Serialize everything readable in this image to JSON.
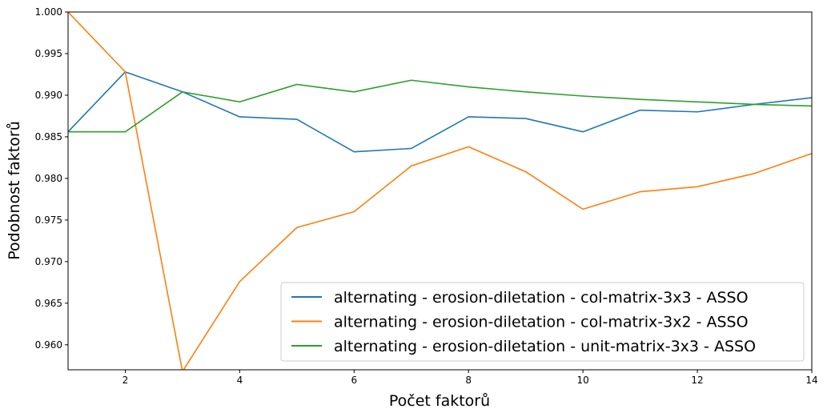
{
  "chart_data": {
    "type": "line",
    "title": "",
    "xlabel": "Počet faktorů",
    "ylabel": "Podobnost faktorů",
    "xlim": [
      1,
      14
    ],
    "ylim": [
      0.957,
      1.0
    ],
    "x_ticks": [
      2,
      4,
      6,
      8,
      10,
      12,
      14
    ],
    "y_ticks": [
      0.96,
      0.965,
      0.97,
      0.975,
      0.98,
      0.985,
      0.99,
      0.995,
      1.0
    ],
    "x_tick_labels": [
      "2",
      "4",
      "6",
      "8",
      "10",
      "12",
      "14"
    ],
    "y_tick_labels": [
      "0.960",
      "0.965",
      "0.970",
      "0.975",
      "0.980",
      "0.985",
      "0.990",
      "0.995",
      "1.000"
    ],
    "grid": false,
    "legend_position": "lower-right",
    "x": [
      1,
      2,
      3,
      4,
      5,
      6,
      7,
      8,
      9,
      10,
      11,
      12,
      13,
      14
    ],
    "series": [
      {
        "name": "alternating - erosion-diletation - col-matrix-3x3 - ASSO",
        "color": "#1f77b4",
        "values": [
          0.9856,
          0.9928,
          0.9904,
          0.9874,
          0.9871,
          0.9832,
          0.9836,
          0.9874,
          0.9872,
          0.9856,
          0.9882,
          0.988,
          0.9889,
          0.9897
        ]
      },
      {
        "name": "alternating - erosion-diletation - col-matrix-3x2 - ASSO",
        "color": "#ff7f0e",
        "values": [
          1.0,
          0.9928,
          0.9568,
          0.9676,
          0.9741,
          0.976,
          0.9815,
          0.9838,
          0.9808,
          0.9763,
          0.9784,
          0.979,
          0.9806,
          0.983
        ]
      },
      {
        "name": "alternating - erosion-diletation - unit-matrix-3x3 - ASSO",
        "color": "#2ca02c",
        "values": [
          0.9856,
          0.9856,
          0.9904,
          0.9892,
          0.9913,
          0.9904,
          0.9918,
          0.991,
          0.9904,
          0.9899,
          0.9895,
          0.9892,
          0.9889,
          0.9887
        ]
      }
    ]
  }
}
